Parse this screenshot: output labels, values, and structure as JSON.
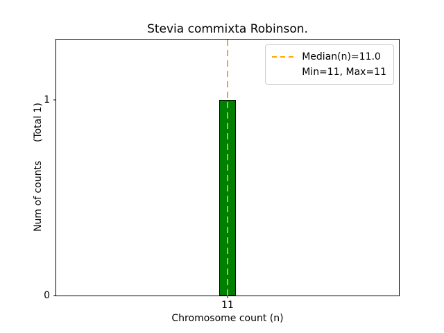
{
  "chart_data": {
    "type": "bar",
    "title": "Stevia commixta Robinson.",
    "xlabel": "Chromosome count (n)",
    "ylabel": "Num of counts      (Total 1)",
    "categories": [
      11
    ],
    "values": [
      1
    ],
    "bar_width": 0.1,
    "bar_color": "#008000",
    "bar_edge_color": "#000000",
    "median": 11.0,
    "min": 11,
    "max": 11,
    "median_line_color": "#ffa500",
    "median_line_style": "dashed",
    "legend_entries": [
      "Median(n)=11.0",
      "Min=11, Max=11"
    ],
    "legend_position": "upper right",
    "xlim": [
      10,
      12
    ],
    "ylim": [
      0,
      1.31
    ],
    "yticks": [
      0,
      1
    ],
    "xticks": [
      11
    ],
    "grid": false
  }
}
